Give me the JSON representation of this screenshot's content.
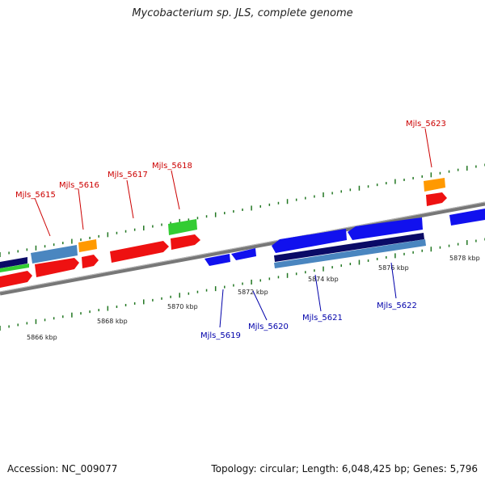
{
  "title": "Mycobacterium sp. JLS, complete genome",
  "footer": {
    "accession": "Accession: NC_009077",
    "summary": "Topology: circular; Length: 6,048,425 bp; Genes: 5,796"
  },
  "colors": {
    "forward_label": "#cc0000",
    "reverse_label": "#0000aa",
    "red_gene": "#ee1111",
    "blue_gene": "#1111ee",
    "navy_gene": "#0a0a66",
    "steel_gene": "#4a86c0",
    "green_gene": "#33cc33",
    "orange_gene": "#ff9900",
    "backbone": "#777777",
    "tick": "#227722"
  },
  "scale": {
    "ticks": [
      {
        "label": "5866 kbp",
        "pos": 5866
      },
      {
        "label": "5868 kbp",
        "pos": 5868
      },
      {
        "label": "5870 kbp",
        "pos": 5870
      },
      {
        "label": "5872 kbp",
        "pos": 5872
      },
      {
        "label": "5874 kbp",
        "pos": 5874
      },
      {
        "label": "5876 kbp",
        "pos": 5876
      },
      {
        "label": "5878 kbp",
        "pos": 5878
      }
    ]
  },
  "labels": {
    "top": [
      "Mjls_5615",
      "Mjls_5616",
      "Mjls_5617",
      "Mjls_5618",
      "Mjls_5623"
    ],
    "bottom": [
      "Mjls_5619",
      "Mjls_5620",
      "Mjls_5621",
      "Mjls_5622"
    ]
  }
}
